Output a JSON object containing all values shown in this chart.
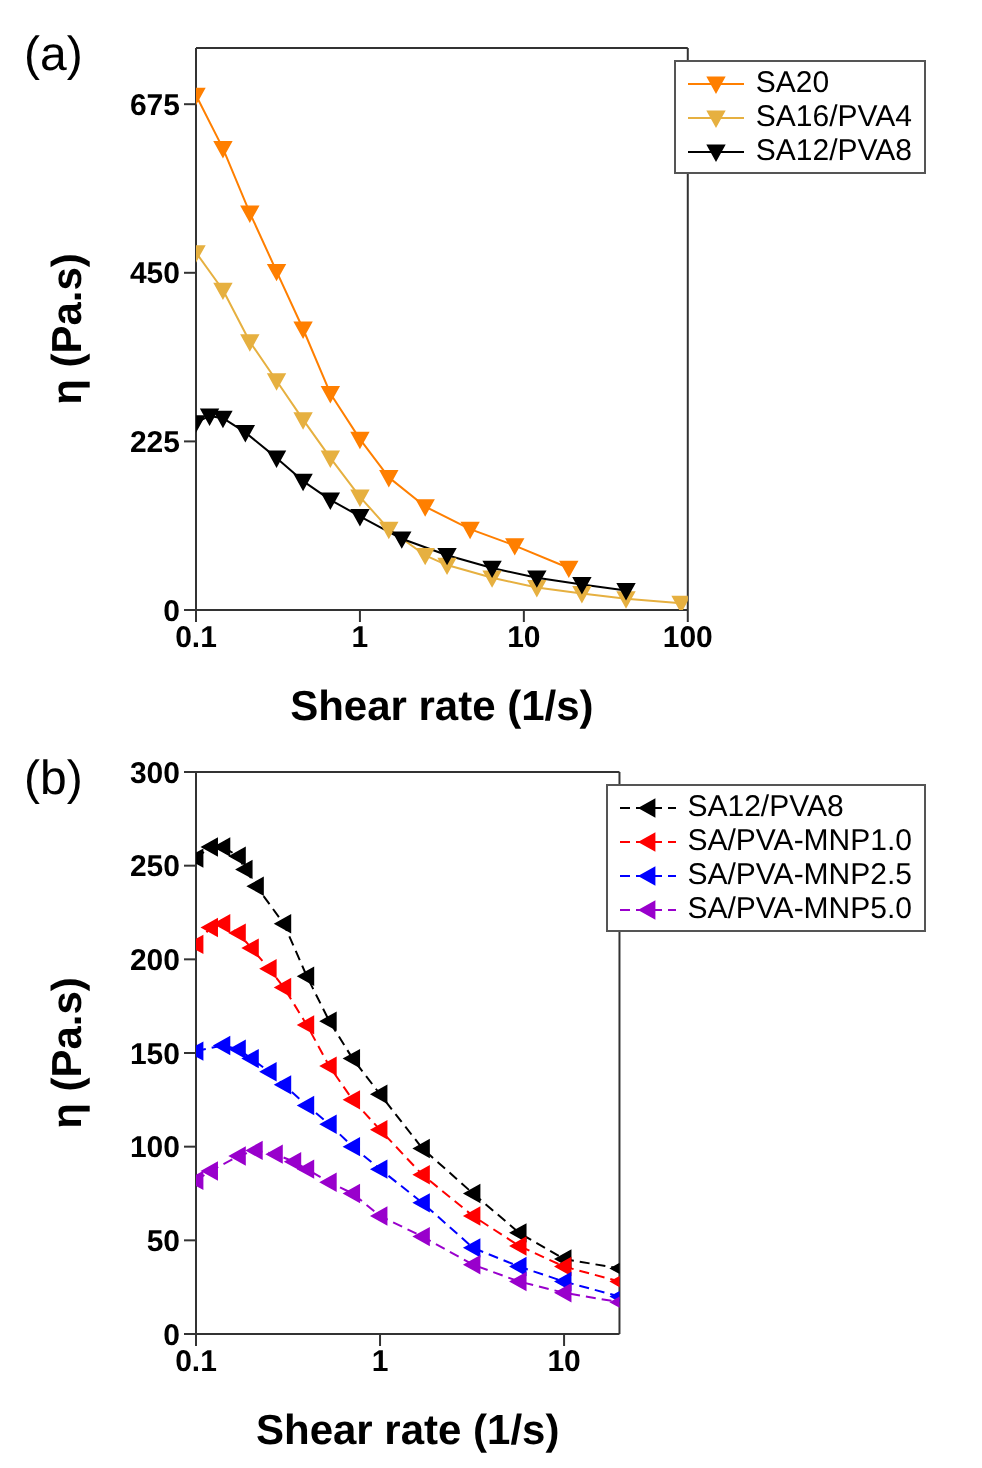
{
  "chart_data": [
    {
      "type": "line",
      "annotations": [
        "(a)"
      ],
      "xlabel": "Shear rate (1/s)",
      "ylabel": "η (Pa.s)",
      "log": "x",
      "xlim": [
        0.1,
        100
      ],
      "xticks": [
        0.1,
        1,
        10,
        100
      ],
      "ylim": [
        0,
        750
      ],
      "yticks": [
        0,
        225,
        450,
        675
      ],
      "grid": false,
      "legend": "top right",
      "marker": "triangle",
      "line_style": "solid",
      "series": [
        {
          "name": "SA20",
          "color": "#ff7f00",
          "x": [
            0.1,
            0.146,
            0.213,
            0.31,
            0.45,
            0.66,
            1,
            1.5,
            2.5,
            4.7,
            8.8,
            18.8
          ],
          "values": [
            687,
            616,
            530,
            452,
            375,
            289,
            228,
            177,
            138,
            108,
            86,
            56
          ]
        },
        {
          "name": "SA16/PVA4",
          "color": "#e6b040",
          "x": [
            0.1,
            0.146,
            0.213,
            0.31,
            0.45,
            0.66,
            1,
            1.5,
            2.5,
            3.4,
            6.4,
            12,
            22.6,
            42,
            91
          ],
          "values": [
            477,
            427,
            358,
            306,
            254,
            203,
            151,
            108,
            73,
            60,
            43,
            30,
            22,
            15,
            9
          ]
        },
        {
          "name": "SA12/PVA8",
          "color": "#000000",
          "x": [
            0.1,
            0.121,
            0.146,
            0.2,
            0.31,
            0.45,
            0.66,
            1,
            1.8,
            3.4,
            6.4,
            12,
            22.6,
            42
          ],
          "values": [
            250,
            259,
            256,
            237,
            203,
            172,
            147,
            125,
            95,
            73,
            56,
            43,
            34,
            26
          ]
        }
      ]
    },
    {
      "type": "line",
      "annotations": [
        "(b)"
      ],
      "xlabel": "Shear rate (1/s)",
      "ylabel": "η (Pa.s)",
      "log": "x",
      "xlim": [
        0.1,
        20
      ],
      "xticks": [
        0.1,
        1,
        10
      ],
      "ylim": [
        0,
        300
      ],
      "yticks": [
        0,
        50,
        100,
        150,
        200,
        250,
        300
      ],
      "grid": false,
      "legend": "top right",
      "marker": "triangle",
      "line_style": "dashed",
      "series": [
        {
          "name": "SA12/PVA8",
          "color": "#000000",
          "x": [
            0.1,
            0.12,
            0.14,
            0.17,
            0.185,
            0.213,
            0.3,
            0.4,
            0.53,
            0.71,
            1,
            1.7,
            3.2,
            5.7,
            10,
            20
          ],
          "values": [
            254,
            260,
            260,
            255,
            248,
            239,
            219,
            191,
            167,
            147,
            128,
            99,
            75,
            54,
            40,
            35
          ]
        },
        {
          "name": "SA/PVA-MNP1.0",
          "color": "#ff0000",
          "x": [
            0.1,
            0.12,
            0.14,
            0.17,
            0.2,
            0.25,
            0.3,
            0.4,
            0.53,
            0.71,
            1,
            1.7,
            3.2,
            5.7,
            10,
            20
          ],
          "values": [
            208,
            217,
            219,
            214,
            206,
            195,
            185,
            165,
            143,
            125,
            109,
            85,
            63,
            47,
            36,
            28
          ]
        },
        {
          "name": "SA/PVA-MNP2.5",
          "color": "#0000ff",
          "x": [
            0.1,
            0.14,
            0.17,
            0.2,
            0.25,
            0.3,
            0.4,
            0.53,
            0.71,
            1,
            1.7,
            3.2,
            5.7,
            10,
            20
          ],
          "values": [
            151,
            154,
            152,
            147,
            140,
            133,
            122,
            112,
            100,
            88,
            70,
            46,
            36,
            28,
            20
          ]
        },
        {
          "name": "SA/PVA-MNP5.0",
          "color": "#9900cc",
          "x": [
            0.1,
            0.12,
            0.17,
            0.21,
            0.27,
            0.34,
            0.4,
            0.53,
            0.71,
            1,
            1.7,
            3.2,
            5.7,
            10,
            20
          ],
          "values": [
            82,
            87,
            95,
            98,
            96,
            92,
            88,
            81,
            75,
            63,
            52,
            37,
            28,
            22,
            17
          ]
        }
      ]
    }
  ]
}
